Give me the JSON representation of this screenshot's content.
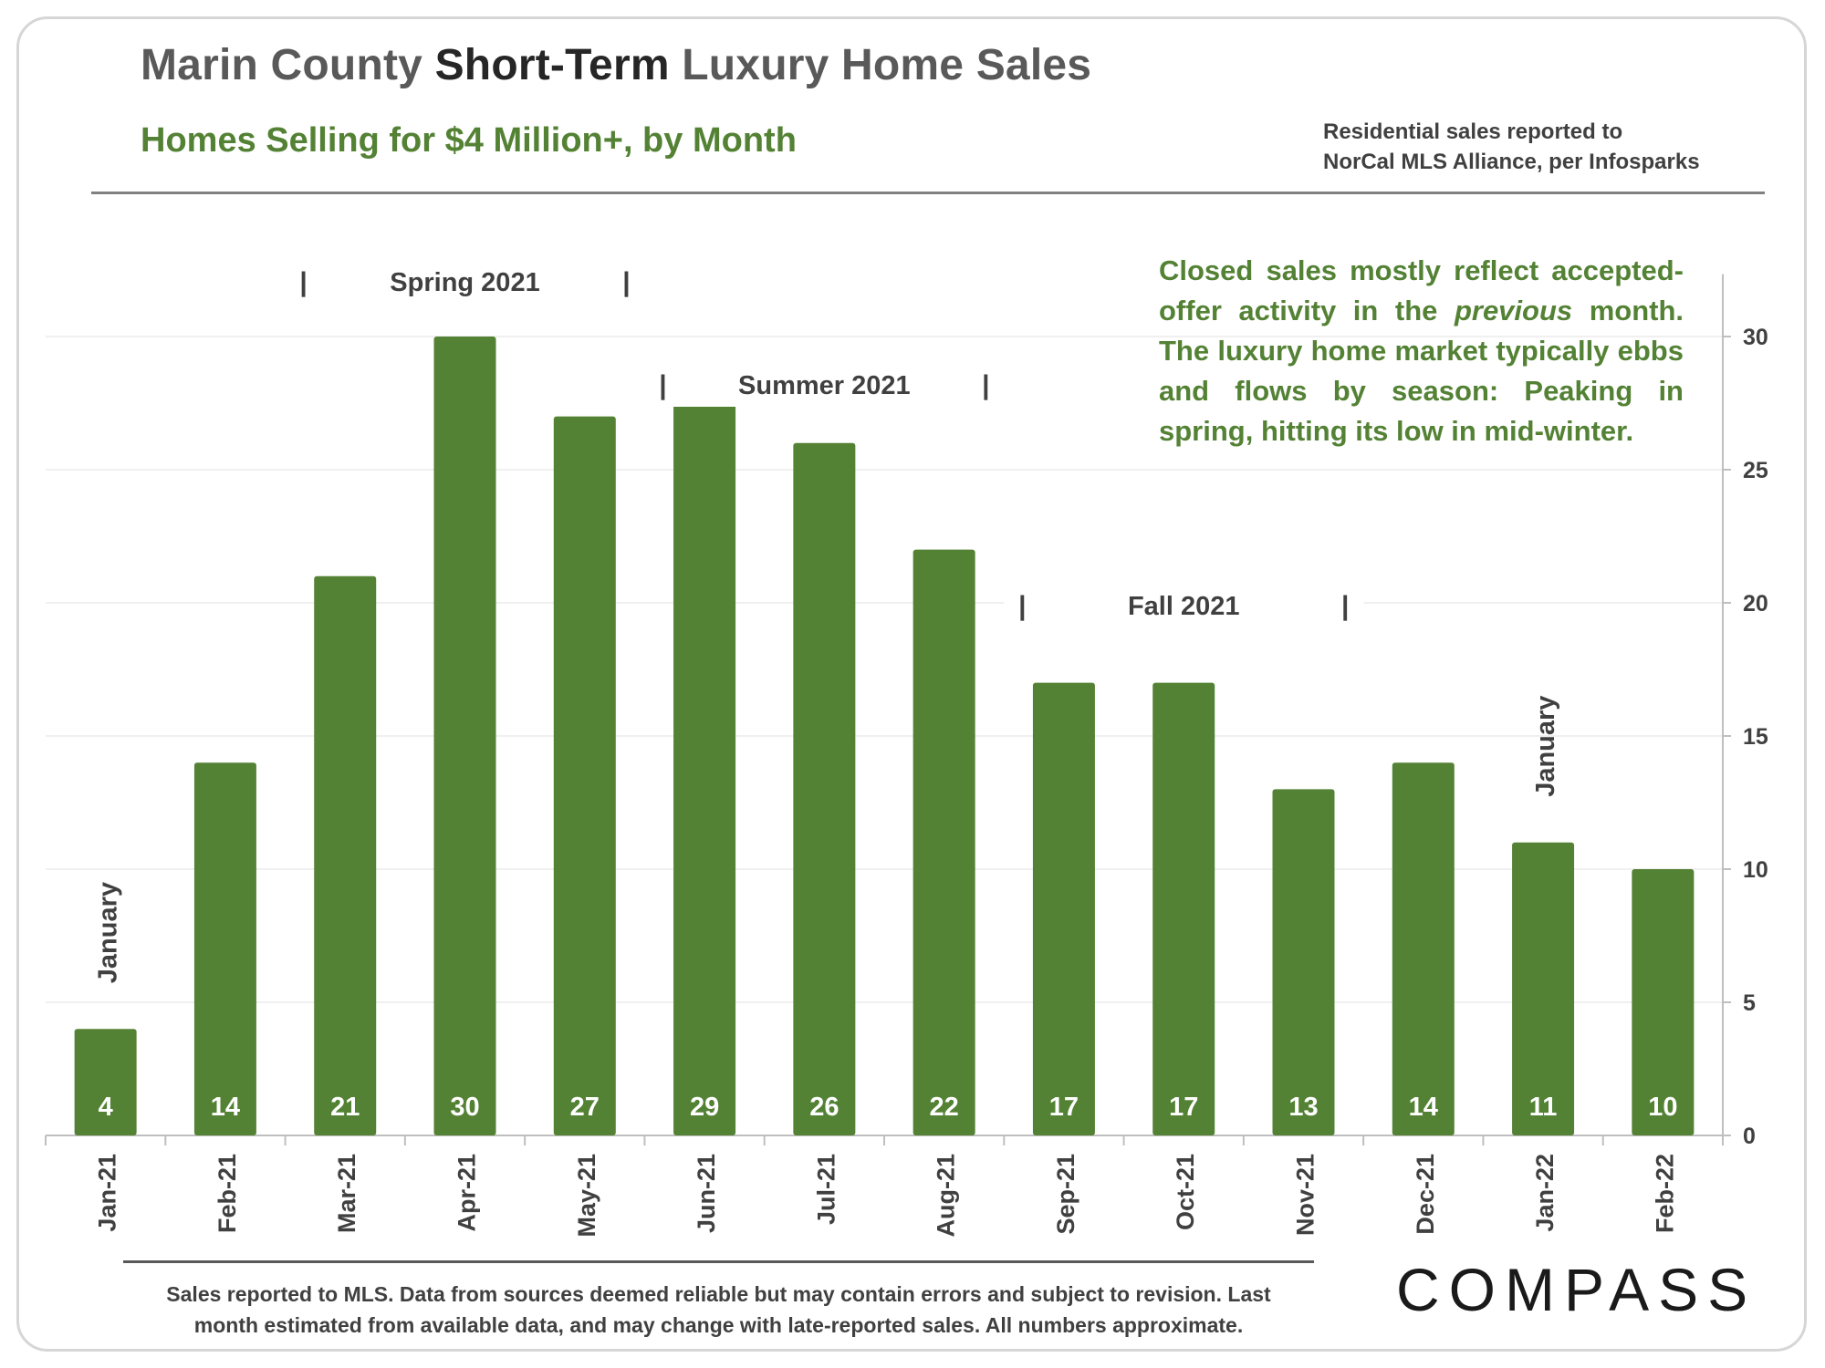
{
  "header": {
    "title_part1": "Marin County ",
    "title_part2": "Short-Term",
    "title_part3": " Luxury Home Sales",
    "subtitle": "Homes Selling for $4 Million+, by Month",
    "source_line1": "Residential sales reported to",
    "source_line2": "NorCal MLS Alliance, per Infosparks"
  },
  "annotation": {
    "part1": "Closed sales mostly reflect accepted-offer activity in the ",
    "emphasis": "previous",
    "part2": " month. The luxury home market typically ebbs and flows by season: Peaking in spring, hitting its low in mid-winter."
  },
  "footnote": {
    "line1": "Sales reported to MLS. Data from sources deemed reliable but may contain errors and subject to revision.  Last",
    "line2": "month estimated from available data, and may change with late-reported sales. All numbers approximate."
  },
  "brand": {
    "logo_text": "COMPASS"
  },
  "colors": {
    "bar": "#548235",
    "title": "#595959",
    "title_strong": "#262626",
    "subtitle": "#548235",
    "axis_text": "#404040"
  },
  "chart_data": {
    "type": "bar",
    "categories": [
      "Jan-21",
      "Feb-21",
      "Mar-21",
      "Apr-21",
      "May-21",
      "Jun-21",
      "Jul-21",
      "Aug-21",
      "Sep-21",
      "Oct-21",
      "Nov-21",
      "Dec-21",
      "Jan-22",
      "Feb-22"
    ],
    "values": [
      4,
      14,
      21,
      30,
      27,
      29,
      26,
      22,
      17,
      17,
      13,
      14,
      11,
      10
    ],
    "data_labels": [
      "4",
      "14",
      "21",
      "30",
      "27",
      "29",
      "26",
      "22",
      "17",
      "17",
      "13",
      "14",
      "11",
      "10"
    ],
    "ylim": [
      0,
      32
    ],
    "yticks": [
      0,
      5,
      10,
      15,
      20,
      25,
      30
    ],
    "y_axis_side": "right",
    "grid": true,
    "xlabel": "",
    "ylabel": "",
    "season_labels": [
      {
        "text": "Spring 2021",
        "from": "Mar-21",
        "to": "May-21"
      },
      {
        "text": "Summer 2021",
        "from": "Jun-21",
        "to": "Aug-21"
      },
      {
        "text": "Fall 2021",
        "from": "Sep-21",
        "to": "Nov-21"
      }
    ],
    "month_markers": [
      {
        "text": "January",
        "category": "Jan-21"
      },
      {
        "text": "January",
        "category": "Jan-22"
      }
    ]
  }
}
